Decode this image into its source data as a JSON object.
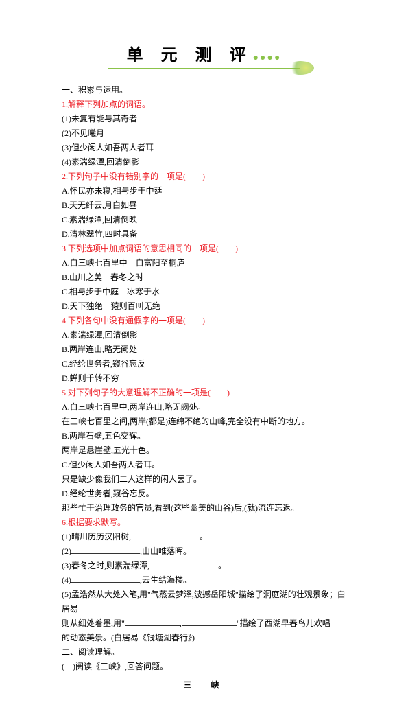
{
  "title": "单 元 测 评",
  "section1": {
    "header": "一、积累与运用。",
    "q1": {
      "prompt": "1.解释下列加点的词语。",
      "items": [
        "(1)未复有能与其奇者",
        "(2)不见曦月",
        "(3)但少闲人如吾两人者耳",
        "(4)素湍绿潭,回清倒影"
      ]
    },
    "q2": {
      "prompt": "2.下列句子中没有错别字的一项是(　　)",
      "options": [
        "A.怀民亦未寝,相与步于中廷",
        "B.天无纤云,月白如昼",
        "C.素湍绿潭,回清倒映",
        "D.清林翠竹,四时具备"
      ]
    },
    "q3": {
      "prompt": "3.下列选项中加点词语的意思相同的一项是(　　)",
      "options": [
        "A.自三峡七百里中　自富阳至桐庐",
        "B.山川之美　春冬之时",
        "C.相与步于中庭　冰寒于水",
        "D.天下独绝　猿则百叫无绝"
      ]
    },
    "q4": {
      "prompt": "4.下列各句中没有通假字的一项是(　　)",
      "options": [
        "A.素湍绿潭,回清倒影",
        "B.两岸连山,略无阙处",
        "C.经纶世务者,窥谷忘反",
        "D.蝉则千转不穷"
      ]
    },
    "q5": {
      "prompt": "5.对下列句子的大意理解不正确的一项是(　　)",
      "options": [
        "A.自三峡七百里中,两岸连山,略无阙处。",
        "在三峡七百里之间,两岸(都是)连绵不绝的山峰,完全没有中断的地方。",
        "B.两岸石壁,五色交辉。",
        "两岸是悬崖壁,五光十色。",
        "C.但少闲人如吾两人者耳。",
        "只是缺少像我们二人这样的闲人罢了。",
        "D.经纶世务者,窥谷忘反。",
        "那些忙于治理政务的官员,看到(这些幽美的山谷)后,(就)流连忘返。"
      ]
    },
    "q6": {
      "prompt": "6.根据要求默写。",
      "items": [
        {
          "prefix": "(1)晴川历历汉阳树,",
          "suffix": "。"
        },
        {
          "prefix": "(2)",
          "mid": ",山山唯落晖。",
          "suffix": ""
        },
        {
          "prefix": "(3)春冬之时,则素湍绿潭,",
          "suffix": "。"
        },
        {
          "prefix": "(4)",
          "mid": ",云生结海楼。",
          "suffix": ""
        }
      ],
      "item5_a": "(5)孟浩然从大处入笔,用\"气蒸云梦泽,波撼岳阳城\"描绘了洞庭湖的壮观景象；白居易",
      "item5_b": "则从细处着墨,用\"",
      "item5_c": ",",
      "item5_d": "\"描绘了西湖早春鸟儿欢唱",
      "item5_e": "的动态美景。(白居易《钱塘湖春行》)"
    }
  },
  "section2": {
    "header": "二、阅读理解。",
    "sub1": "(一)阅读《三峡》,回答问题。",
    "reading_title": "三　峡"
  }
}
